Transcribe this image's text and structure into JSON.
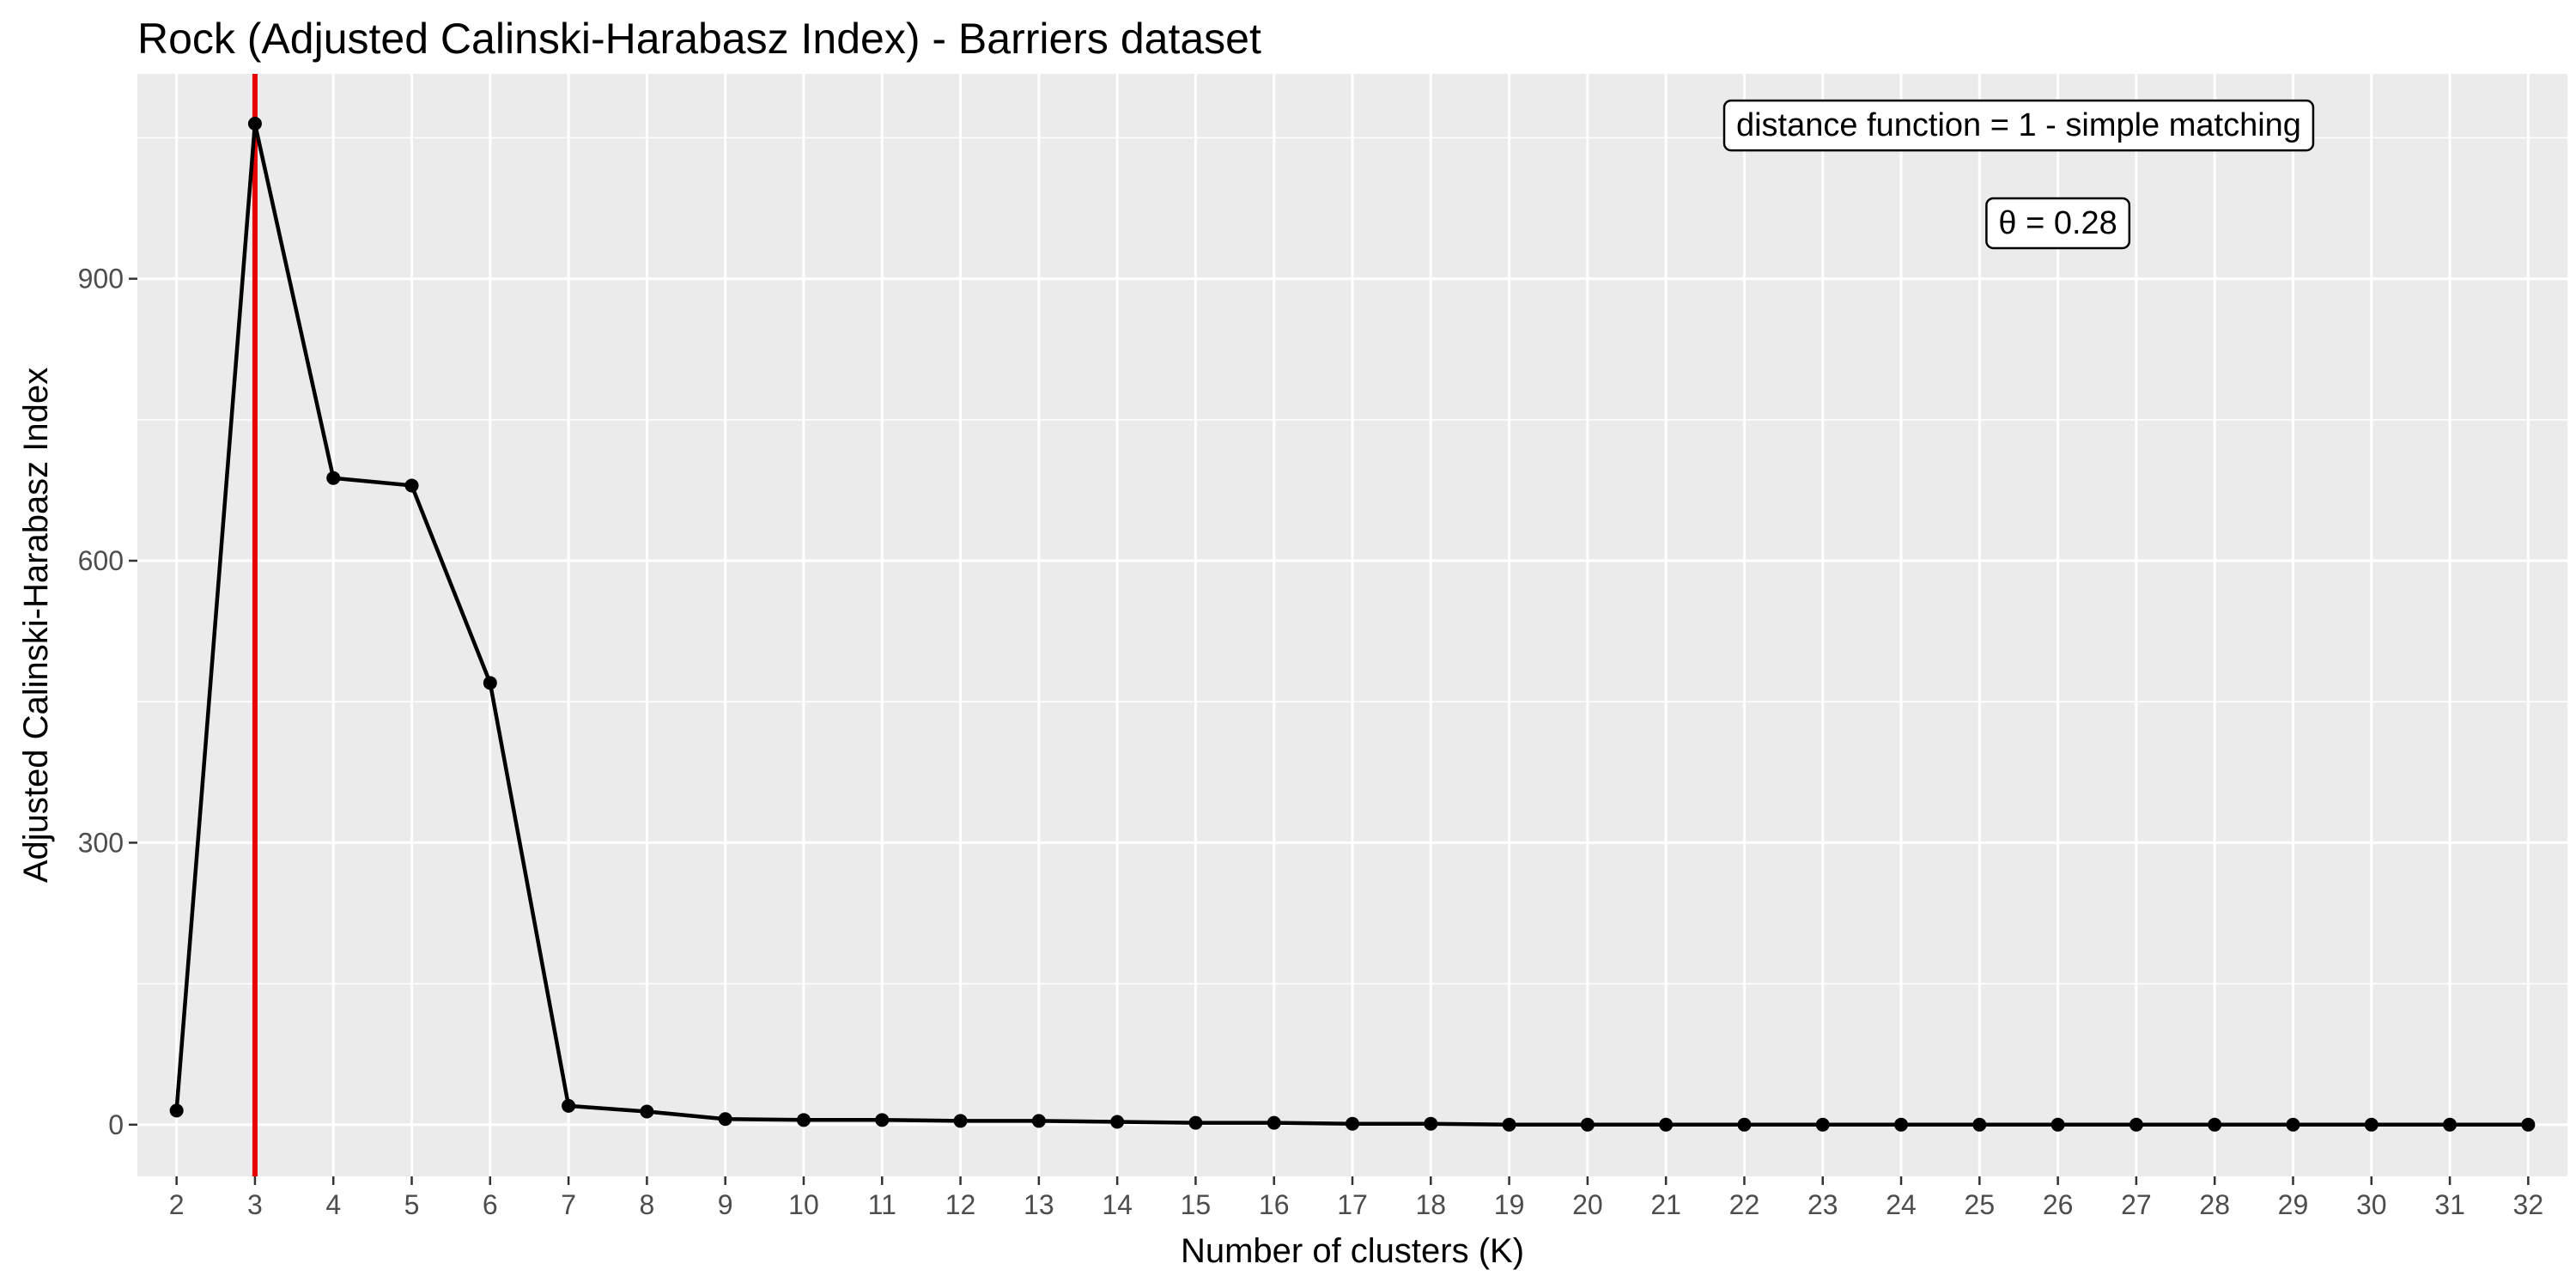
{
  "chart_data": {
    "type": "line",
    "title": "Rock (Adjusted Calinski-Harabasz Index) - Barriers dataset",
    "xlabel": "Number of clusters (K)",
    "ylabel": "Adjusted Calinski-Harabasz Index",
    "x": [
      2,
      3,
      4,
      5,
      6,
      7,
      8,
      9,
      10,
      11,
      12,
      13,
      14,
      15,
      16,
      17,
      18,
      19,
      20,
      21,
      22,
      23,
      24,
      25,
      26,
      27,
      28,
      29,
      30,
      31,
      32
    ],
    "y": [
      15,
      1065,
      688,
      680,
      470,
      20,
      14,
      6,
      5,
      5,
      4,
      4,
      3,
      2,
      2,
      1,
      1,
      0,
      0,
      0,
      0,
      0,
      0,
      0,
      0,
      0,
      0,
      0,
      0,
      0,
      0
    ],
    "xlim": [
      1.5,
      32.5
    ],
    "ylim": [
      -55,
      1118
    ],
    "y_ticks": [
      0,
      300,
      600,
      900
    ],
    "x_ticks": [
      2,
      3,
      4,
      5,
      6,
      7,
      8,
      9,
      10,
      11,
      12,
      13,
      14,
      15,
      16,
      17,
      18,
      19,
      20,
      21,
      22,
      23,
      24,
      25,
      26,
      27,
      28,
      29,
      30,
      31,
      32
    ],
    "vline_x": 3,
    "colors": {
      "line": "#000000",
      "vline": "#e60000",
      "panel": "#ebebeb",
      "grid": "#ffffff"
    },
    "grid": true,
    "annotations": [
      {
        "label": "distance function = 1 -  simple matching",
        "x": 25.5,
        "y": 1064
      },
      {
        "label": "θ = 0.28",
        "x": 26,
        "y": 960
      }
    ]
  }
}
